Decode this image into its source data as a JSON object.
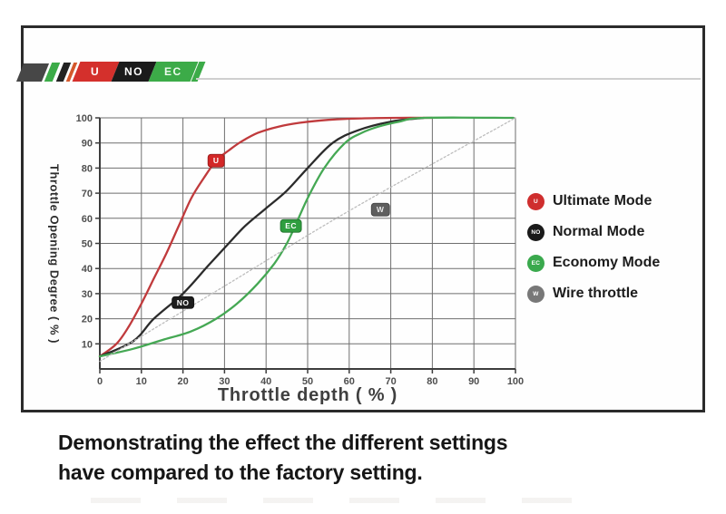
{
  "banner": {
    "segments": [
      {
        "label": "U",
        "color": "#d4302c",
        "text_color": "#ffffff"
      },
      {
        "label": "NO",
        "color": "#1b1b1b",
        "text_color": "#ffffff"
      },
      {
        "label": "EC",
        "color": "#3cab48",
        "text_color": "#eefbee"
      }
    ],
    "stripe_colors": [
      "#3cab48",
      "#222222",
      "#d4582c"
    ]
  },
  "chart_data": {
    "type": "line",
    "title": "",
    "xlabel": "Throttle depth ( % )",
    "ylabel": "Throttle Opening Degree ( % )",
    "xlim": [
      0,
      100
    ],
    "ylim": [
      0,
      100
    ],
    "xticks": [
      0,
      10,
      20,
      30,
      40,
      50,
      60,
      70,
      80,
      90,
      100
    ],
    "yticks": [
      10,
      20,
      30,
      40,
      50,
      60,
      70,
      80,
      90,
      100
    ],
    "grid": true,
    "legend_position": "right",
    "series": [
      {
        "name": "Ultimate Mode",
        "color": "#c03a3c",
        "style": "solid",
        "points": [
          [
            0,
            5
          ],
          [
            4,
            10
          ],
          [
            7,
            17
          ],
          [
            10,
            26
          ],
          [
            13,
            36
          ],
          [
            16,
            46
          ],
          [
            19,
            57
          ],
          [
            22,
            68
          ],
          [
            25,
            76
          ],
          [
            28,
            83
          ],
          [
            31,
            87
          ],
          [
            34,
            90.5
          ],
          [
            38,
            94
          ],
          [
            43,
            96.5
          ],
          [
            48,
            98
          ],
          [
            55,
            99.2
          ],
          [
            63,
            99.8
          ],
          [
            72,
            100
          ],
          [
            80,
            100
          ]
        ]
      },
      {
        "name": "Normal Mode",
        "color": "#2b2b2b",
        "style": "solid",
        "points": [
          [
            0,
            5
          ],
          [
            8,
            11
          ],
          [
            13,
            20
          ],
          [
            20,
            30
          ],
          [
            26,
            41
          ],
          [
            31,
            50
          ],
          [
            35,
            57
          ],
          [
            40,
            64
          ],
          [
            45,
            71
          ],
          [
            50,
            80
          ],
          [
            56,
            90
          ],
          [
            62,
            95
          ],
          [
            70,
            98.5
          ],
          [
            78,
            100
          ]
        ]
      },
      {
        "name": "Economy Mode",
        "color": "#45a854",
        "style": "solid",
        "points": [
          [
            0,
            5
          ],
          [
            8,
            8
          ],
          [
            15,
            11.5
          ],
          [
            22,
            15
          ],
          [
            28,
            20
          ],
          [
            33,
            26
          ],
          [
            38,
            34
          ],
          [
            42,
            42
          ],
          [
            45,
            50
          ],
          [
            47,
            57
          ],
          [
            50,
            68
          ],
          [
            54,
            80
          ],
          [
            59,
            90
          ],
          [
            63,
            94
          ],
          [
            67,
            96.5
          ],
          [
            72,
            98.5
          ],
          [
            78,
            100
          ],
          [
            99.5,
            100
          ]
        ]
      },
      {
        "name": "Wire throttle",
        "color": "#bdbdbd",
        "style": "dotted",
        "points": [
          [
            0,
            3
          ],
          [
            30,
            33
          ],
          [
            60,
            63
          ],
          [
            100,
            100
          ]
        ]
      }
    ],
    "annotations": [
      {
        "label": "U",
        "x": 28,
        "y": 83,
        "bg": "#d32727",
        "fg": "#ffffff"
      },
      {
        "label": "NO",
        "x": 20,
        "y": 26.5,
        "bg": "#1c1c1c",
        "fg": "#ffffff"
      },
      {
        "label": "EC",
        "x": 46,
        "y": 57,
        "bg": "#2f9e3f",
        "fg": "#ffffff"
      },
      {
        "label": "W",
        "x": 67.5,
        "y": 63.5,
        "bg": "#5f5f5f",
        "fg": "#e8e8e8"
      }
    ]
  },
  "legend": {
    "items": [
      {
        "label": "Ultimate Mode",
        "marker_text": "U",
        "marker_color": "#cf2e2e"
      },
      {
        "label": "Normal Mode",
        "marker_text": "NO",
        "marker_color": "#1a1a1a"
      },
      {
        "label": "Economy Mode",
        "marker_text": "EC",
        "marker_color": "#3aa94d"
      },
      {
        "label": "Wire throttle",
        "marker_text": "W",
        "marker_color": "#787878"
      }
    ]
  },
  "caption": {
    "line1": "Demonstrating the effect the different settings",
    "line2": "have compared to the factory setting."
  }
}
